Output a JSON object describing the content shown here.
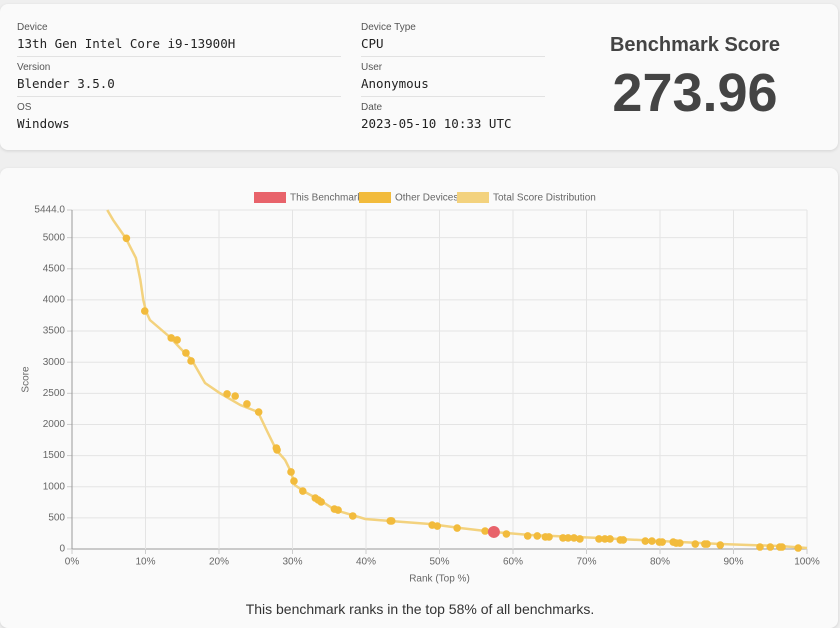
{
  "info": {
    "fields": [
      {
        "label": "Device",
        "value": "13th Gen Intel Core i9-13900H"
      },
      {
        "label": "Version",
        "value": "Blender 3.5.0"
      },
      {
        "label": "OS",
        "value": "Windows"
      },
      {
        "label": "Device Type",
        "value": "CPU"
      },
      {
        "label": "User",
        "value": "Anonymous"
      },
      {
        "label": "Date",
        "value": "2023-05-10 10:33 UTC"
      }
    ],
    "score_label": "Benchmark Score",
    "score": "273.96"
  },
  "chart_data": {
    "type": "scatter",
    "x_label": "Rank (Top %)",
    "y_label": "Score",
    "xlim": [
      0,
      100
    ],
    "ylim": [
      0,
      5444
    ],
    "xticks": [
      {
        "value": 0,
        "label": "0%"
      },
      {
        "value": 10,
        "label": "10%"
      },
      {
        "value": 20,
        "label": "20%"
      },
      {
        "value": 30,
        "label": "30%"
      },
      {
        "value": 40,
        "label": "40%"
      },
      {
        "value": 50,
        "label": "50%"
      },
      {
        "value": 60,
        "label": "60%"
      },
      {
        "value": 70,
        "label": "70%"
      },
      {
        "value": 80,
        "label": "80%"
      },
      {
        "value": 90,
        "label": "90%"
      },
      {
        "value": 100,
        "label": "100%"
      }
    ],
    "yticks": [
      0,
      500,
      1000,
      1500,
      2000,
      2500,
      3000,
      3500,
      4000,
      4500,
      5000,
      {
        "value": 5444,
        "label": "5444.0"
      }
    ],
    "grid": true,
    "legend": "top",
    "series": [
      {
        "name": "This Benchmark",
        "type": "point",
        "color": "#e8636b",
        "x": [
          57.4
        ],
        "values": [
          273.96
        ]
      },
      {
        "name": "Other Devices",
        "type": "point",
        "color": "#f2bb3c",
        "x": [
          7.4,
          9.9,
          13.5,
          14.3,
          15.5,
          16.2,
          21.1,
          22.2,
          23.8,
          25.4,
          27.8,
          27.9,
          29.8,
          30.2,
          31.4,
          33.1,
          33.5,
          33.9,
          35.7,
          36.2,
          38.2,
          43.3,
          43.5,
          49.0,
          49.7,
          52.4,
          56.2,
          59.1,
          62.0,
          63.3,
          64.4,
          64.9,
          66.8,
          67.5,
          68.3,
          69.1,
          71.7,
          72.5,
          73.2,
          74.6,
          75.0,
          78.0,
          78.9,
          79.9,
          80.3,
          81.8,
          82.2,
          82.7,
          84.8,
          86.1,
          86.4,
          88.2,
          93.6,
          95.0,
          96.3,
          96.6,
          98.8
        ],
        "values": [
          4990,
          3822,
          3389,
          3357,
          3148,
          3020,
          2490,
          2457,
          2329,
          2200,
          1622,
          1590,
          1237,
          1092,
          931,
          819,
          787,
          755,
          642,
          626,
          530,
          450,
          450,
          385,
          369,
          337,
          289,
          241,
          209,
          209,
          193,
          193,
          177,
          177,
          177,
          161,
          161,
          161,
          161,
          145,
          145,
          128,
          128,
          112,
          112,
          112,
          96,
          96,
          80,
          80,
          80,
          64,
          32,
          32,
          32,
          32,
          16
        ]
      },
      {
        "name": "Total Score Distribution",
        "type": "line",
        "color": "#f3d27e",
        "x": [
          4.8,
          5.6,
          7.3,
          8.7,
          9.3,
          9.7,
          10.1,
          10.6,
          13.3,
          14.7,
          16.3,
          18.1,
          20.1,
          22.9,
          25.3,
          26.6,
          27.8,
          29.0,
          29.8,
          30.3,
          31.7,
          33.7,
          35.8,
          38.1,
          39.9,
          43.3,
          48.7,
          52.8,
          57.4,
          62.3,
          71.8,
          80.0,
          88.2,
          96.3,
          100
        ],
        "values": [
          5444,
          5283,
          4994,
          4673,
          4320,
          3999,
          3806,
          3677,
          3405,
          3228,
          3035,
          2666,
          2505,
          2312,
          2200,
          1879,
          1590,
          1429,
          1237,
          1028,
          915,
          787,
          626,
          546,
          482,
          450,
          401,
          337,
          273,
          225,
          177,
          128,
          80,
          48,
          16
        ]
      }
    ]
  },
  "footer": "This benchmark ranks in the top 58% of all benchmarks."
}
